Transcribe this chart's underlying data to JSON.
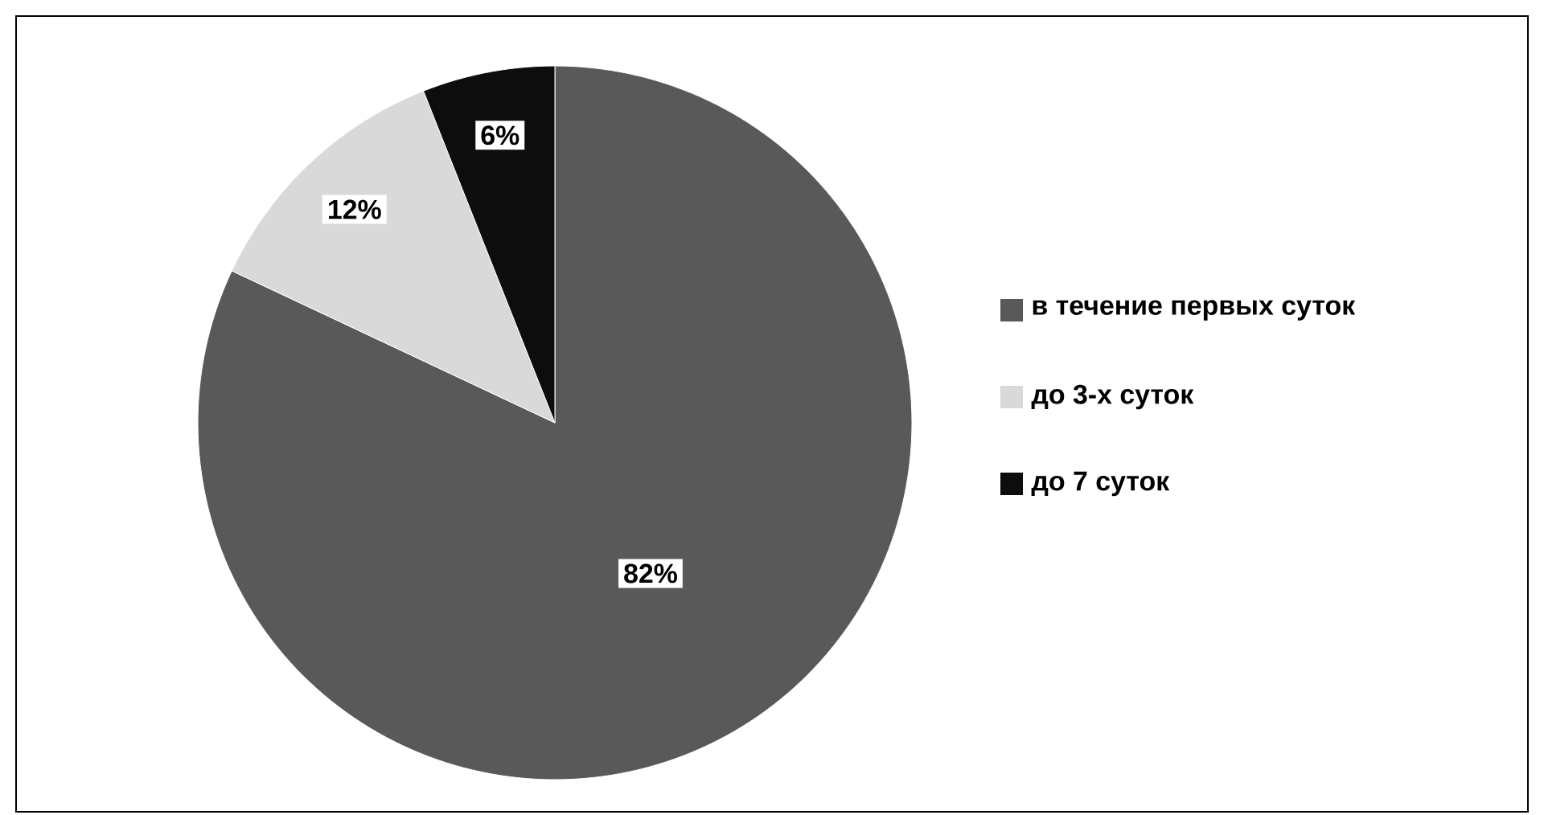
{
  "chart_data": {
    "type": "pie",
    "categories": [
      "в течение первых суток",
      "до 3-х суток",
      "до 7 суток"
    ],
    "values": [
      82,
      12,
      6
    ],
    "colors": [
      "#595959",
      "#d9d9d9",
      "#0d0d0d"
    ],
    "value_labels": [
      "82%",
      "12%",
      "6%"
    ],
    "legend": "right"
  }
}
